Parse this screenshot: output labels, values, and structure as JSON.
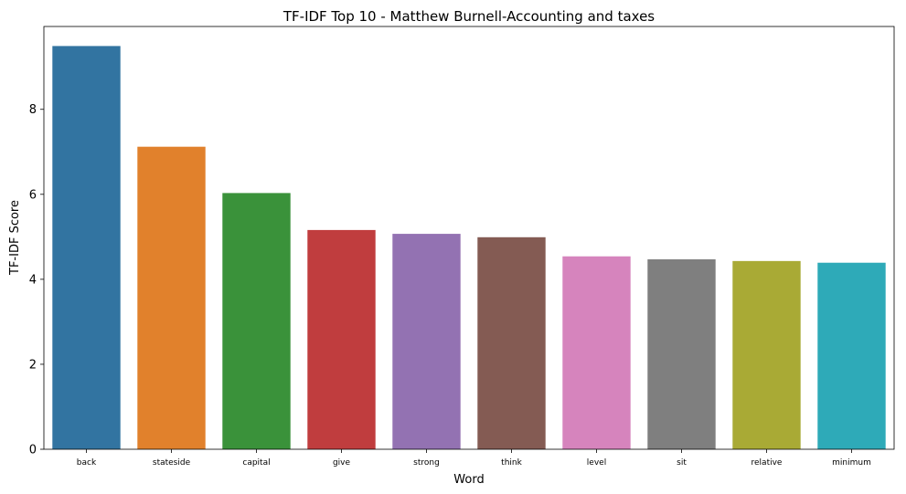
{
  "chart_data": {
    "type": "bar",
    "title": "TF-IDF Top 10 - Matthew Burnell-Accounting and taxes",
    "xlabel": "Word",
    "ylabel": "TF-IDF Score",
    "categories": [
      "back",
      "stateside",
      "capital",
      "give",
      "strong",
      "think",
      "level",
      "sit",
      "relative",
      "minimum"
    ],
    "values": [
      9.49,
      7.12,
      6.03,
      5.16,
      5.07,
      4.99,
      4.54,
      4.47,
      4.43,
      4.39
    ],
    "colors": [
      "#3274a1",
      "#e1812c",
      "#3a923a",
      "#c03d3e",
      "#9372b2",
      "#845b53",
      "#d684bd",
      "#7f7f7f",
      "#a9aa35",
      "#2eaab8"
    ],
    "ylim": [
      0,
      9.95
    ],
    "yticks": [
      0,
      2,
      4,
      6,
      8
    ],
    "grid": false,
    "legend": "none"
  }
}
